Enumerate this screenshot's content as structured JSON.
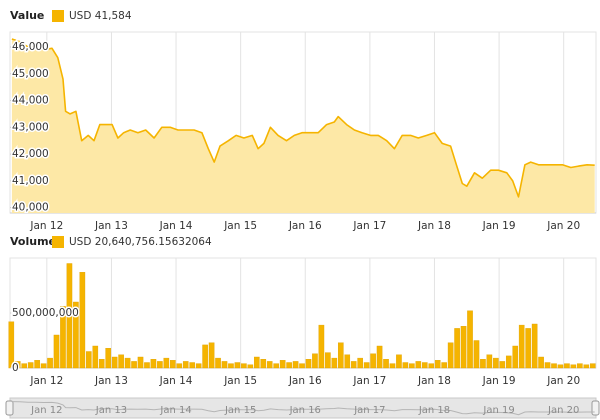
{
  "chart_data": [
    {
      "type": "area",
      "title": "Value",
      "series": [
        {
          "name": "USD 41,584",
          "color": "#f5b400",
          "fill": "#fde8a6",
          "x": [
            11.46,
            11.58,
            11.71,
            11.83,
            11.95,
            12.08,
            12.17,
            12.25,
            12.29,
            12.36,
            12.45,
            12.54,
            12.64,
            12.73,
            12.82,
            12.91,
            13.01,
            13.1,
            13.19,
            13.29,
            13.41,
            13.53,
            13.66,
            13.78,
            13.91,
            14.03,
            14.16,
            14.28,
            14.4,
            14.5,
            14.59,
            14.68,
            14.81,
            14.93,
            15.05,
            15.18,
            15.27,
            15.36,
            15.46,
            15.58,
            15.71,
            15.83,
            15.95,
            16.08,
            16.2,
            16.33,
            16.45,
            16.51,
            16.64,
            16.76,
            16.88,
            17.01,
            17.13,
            17.26,
            17.38,
            17.5,
            17.63,
            17.75,
            17.88,
            18.0,
            18.12,
            18.25,
            18.34,
            18.43,
            18.5,
            18.62,
            18.74,
            18.87,
            18.99,
            19.12,
            19.21,
            19.3,
            19.4,
            19.49,
            19.61,
            19.74,
            19.86,
            19.98,
            20.11,
            20.23,
            20.36,
            20.48
          ],
          "values": [
            46300,
            46200,
            46000,
            46000,
            45900,
            45950,
            45600,
            44800,
            43600,
            43500,
            43600,
            42500,
            42700,
            42500,
            43100,
            43100,
            43100,
            42600,
            42800,
            42900,
            42800,
            42900,
            42600,
            43000,
            43000,
            42900,
            42900,
            42900,
            42800,
            42200,
            41700,
            42300,
            42500,
            42700,
            42600,
            42700,
            42200,
            42400,
            43000,
            42700,
            42500,
            42700,
            42800,
            42800,
            42800,
            43100,
            43200,
            43400,
            43100,
            42900,
            42800,
            42700,
            42700,
            42500,
            42200,
            42700,
            42700,
            42600,
            42700,
            42800,
            42400,
            42300,
            41600,
            40900,
            40800,
            41300,
            41100,
            41400,
            41400,
            41300,
            41000,
            40400,
            41600,
            41700,
            41600,
            41600,
            41600,
            41600,
            41500,
            41550,
            41600,
            41584
          ]
        }
      ],
      "xlim": [
        11.43,
        20.5
      ],
      "xticks": [
        {
          "value": 12,
          "label": "Jan 12"
        },
        {
          "value": 13,
          "label": "Jan 13"
        },
        {
          "value": 14,
          "label": "Jan 14"
        },
        {
          "value": 15,
          "label": "Jan 15"
        },
        {
          "value": 16,
          "label": "Jan 16"
        },
        {
          "value": 17,
          "label": "Jan 17"
        },
        {
          "value": 18,
          "label": "Jan 18"
        },
        {
          "value": 19,
          "label": "Jan 19"
        },
        {
          "value": 20,
          "label": "Jan 20"
        }
      ],
      "ylim": [
        39800,
        46560
      ],
      "yticks": [
        {
          "value": 40000,
          "label": "40,000"
        },
        {
          "value": 41000,
          "label": "41,000"
        },
        {
          "value": 42000,
          "label": "42,000"
        },
        {
          "value": 43000,
          "label": "43,000"
        },
        {
          "value": 44000,
          "label": "44,000"
        },
        {
          "value": 45000,
          "label": "45,000"
        },
        {
          "value": 46000,
          "label": "46,000"
        }
      ],
      "grid": true
    },
    {
      "type": "bar",
      "title": "Volume",
      "series": [
        {
          "name": "USD 20,640,756.15632064",
          "color": "#f5b400",
          "x": [
            11.45,
            11.55,
            11.65,
            11.75,
            11.85,
            11.95,
            12.05,
            12.15,
            12.25,
            12.35,
            12.45,
            12.55,
            12.65,
            12.75,
            12.85,
            12.95,
            13.05,
            13.15,
            13.25,
            13.35,
            13.45,
            13.55,
            13.65,
            13.75,
            13.85,
            13.95,
            14.05,
            14.15,
            14.25,
            14.35,
            14.45,
            14.55,
            14.65,
            14.75,
            14.85,
            14.95,
            15.05,
            15.15,
            15.25,
            15.35,
            15.45,
            15.55,
            15.65,
            15.75,
            15.85,
            15.95,
            16.05,
            16.15,
            16.25,
            16.35,
            16.45,
            16.55,
            16.65,
            16.75,
            16.85,
            16.95,
            17.05,
            17.15,
            17.25,
            17.35,
            17.45,
            17.55,
            17.65,
            17.75,
            17.85,
            17.95,
            18.05,
            18.15,
            18.25,
            18.35,
            18.45,
            18.55,
            18.65,
            18.75,
            18.85,
            18.95,
            19.05,
            19.15,
            19.25,
            19.35,
            19.45,
            19.55,
            19.65,
            19.75,
            19.85,
            19.95,
            20.05,
            20.15,
            20.25,
            20.35,
            20.45
          ],
          "values": [
            420000000,
            60000000,
            40000000,
            50000000,
            70000000,
            40000000,
            90000000,
            300000000,
            560000000,
            950000000,
            600000000,
            870000000,
            150000000,
            200000000,
            80000000,
            180000000,
            100000000,
            120000000,
            90000000,
            60000000,
            100000000,
            50000000,
            80000000,
            60000000,
            90000000,
            70000000,
            40000000,
            60000000,
            50000000,
            40000000,
            210000000,
            230000000,
            90000000,
            60000000,
            40000000,
            50000000,
            40000000,
            30000000,
            100000000,
            80000000,
            60000000,
            40000000,
            70000000,
            50000000,
            60000000,
            40000000,
            80000000,
            130000000,
            390000000,
            140000000,
            90000000,
            230000000,
            120000000,
            60000000,
            90000000,
            50000000,
            130000000,
            200000000,
            80000000,
            40000000,
            120000000,
            50000000,
            40000000,
            60000000,
            50000000,
            40000000,
            70000000,
            50000000,
            230000000,
            360000000,
            380000000,
            520000000,
            250000000,
            80000000,
            120000000,
            90000000,
            60000000,
            110000000,
            200000000,
            390000000,
            360000000,
            400000000,
            100000000,
            50000000,
            40000000,
            30000000,
            40000000,
            30000000,
            40000000,
            30000000,
            40000000
          ]
        }
      ],
      "xlim": [
        11.43,
        20.5
      ],
      "xticks": [
        {
          "value": 12,
          "label": "Jan 12"
        },
        {
          "value": 13,
          "label": "Jan 13"
        },
        {
          "value": 14,
          "label": "Jan 14"
        },
        {
          "value": 15,
          "label": "Jan 15"
        },
        {
          "value": 16,
          "label": "Jan 16"
        },
        {
          "value": 17,
          "label": "Jan 17"
        },
        {
          "value": 18,
          "label": "Jan 18"
        },
        {
          "value": 19,
          "label": "Jan 19"
        },
        {
          "value": 20,
          "label": "Jan 20"
        }
      ],
      "ylim": [
        0,
        1000000000
      ],
      "yticks": [
        0,
        {
          "value": 500000000,
          "label": "500,000,000"
        }
      ],
      "grid": true
    }
  ]
}
